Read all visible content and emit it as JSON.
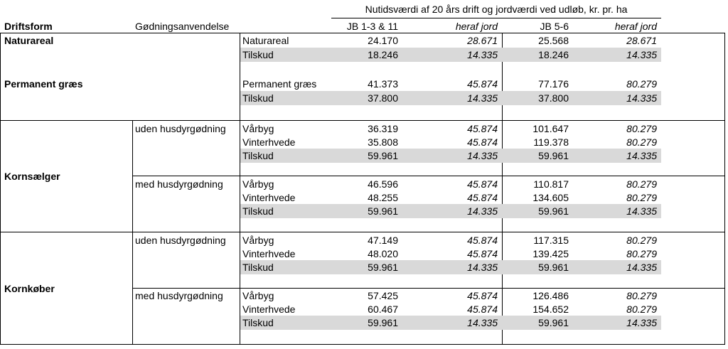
{
  "header": {
    "span_title": "Nutidsværdi af 20 års drift og jordværdi ved udløb, kr. pr. ha",
    "col_driftsform": "Driftsform",
    "col_godning": "Gødningsanvendelse",
    "col_jb1": "JB 1-3 & 11",
    "col_heraf1": "heraf jord",
    "col_jb2": "JB 5-6",
    "col_heraf2": "heraf jord"
  },
  "groups": [
    {
      "label": "Naturareal"
    },
    {
      "label": "Permanent græs"
    },
    {
      "label": "Kornsælger"
    },
    {
      "label": "Kornkøber"
    }
  ],
  "subgroups": [
    {
      "label": "uden husdyrgødning"
    },
    {
      "label": "med husdyrgødning"
    },
    {
      "label": "uden husdyrgødning"
    },
    {
      "label": "med husdyrgødning"
    }
  ],
  "rows": [
    {
      "crop": "Naturareal",
      "jb1": "24.170",
      "heraf1": "28.671",
      "jb2": "25.568",
      "heraf2": "28.671",
      "shaded": false
    },
    {
      "crop": "Tilskud",
      "jb1": "18.246",
      "heraf1": "14.335",
      "jb2": "18.246",
      "heraf2": "14.335",
      "shaded": true
    },
    {
      "crop": "Permanent græs",
      "jb1": "41.373",
      "heraf1": "45.874",
      "jb2": "77.176",
      "heraf2": "80.279",
      "shaded": false
    },
    {
      "crop": "Tilskud",
      "jb1": "37.800",
      "heraf1": "14.335",
      "jb2": "37.800",
      "heraf2": "14.335",
      "shaded": true
    },
    {
      "crop": "Vårbyg",
      "jb1": "36.319",
      "heraf1": "45.874",
      "jb2": "101.647",
      "heraf2": "80.279",
      "shaded": false
    },
    {
      "crop": "Vinterhvede",
      "jb1": "35.808",
      "heraf1": "45.874",
      "jb2": "119.378",
      "heraf2": "80.279",
      "shaded": false
    },
    {
      "crop": "Tilskud",
      "jb1": "59.961",
      "heraf1": "14.335",
      "jb2": "59.961",
      "heraf2": "14.335",
      "shaded": true
    },
    {
      "crop": "Vårbyg",
      "jb1": "46.596",
      "heraf1": "45.874",
      "jb2": "110.817",
      "heraf2": "80.279",
      "shaded": false
    },
    {
      "crop": "Vinterhvede",
      "jb1": "48.255",
      "heraf1": "45.874",
      "jb2": "134.605",
      "heraf2": "80.279",
      "shaded": false
    },
    {
      "crop": "Tilskud",
      "jb1": "59.961",
      "heraf1": "14.335",
      "jb2": "59.961",
      "heraf2": "14.335",
      "shaded": true
    },
    {
      "crop": "Vårbyg",
      "jb1": "47.149",
      "heraf1": "45.874",
      "jb2": "117.315",
      "heraf2": "80.279",
      "shaded": false
    },
    {
      "crop": "Vinterhvede",
      "jb1": "48.020",
      "heraf1": "45.874",
      "jb2": "139.425",
      "heraf2": "80.279",
      "shaded": false
    },
    {
      "crop": "Tilskud",
      "jb1": "59.961",
      "heraf1": "14.335",
      "jb2": "59.961",
      "heraf2": "14.335",
      "shaded": true
    },
    {
      "crop": "Vårbyg",
      "jb1": "57.425",
      "heraf1": "45.874",
      "jb2": "126.486",
      "heraf2": "80.279",
      "shaded": false
    },
    {
      "crop": "Vinterhvede",
      "jb1": "60.467",
      "heraf1": "45.874",
      "jb2": "154.652",
      "heraf2": "80.279",
      "shaded": false
    },
    {
      "crop": "Tilskud",
      "jb1": "59.961",
      "heraf1": "14.335",
      "jb2": "59.961",
      "heraf2": "14.335",
      "shaded": true
    }
  ]
}
